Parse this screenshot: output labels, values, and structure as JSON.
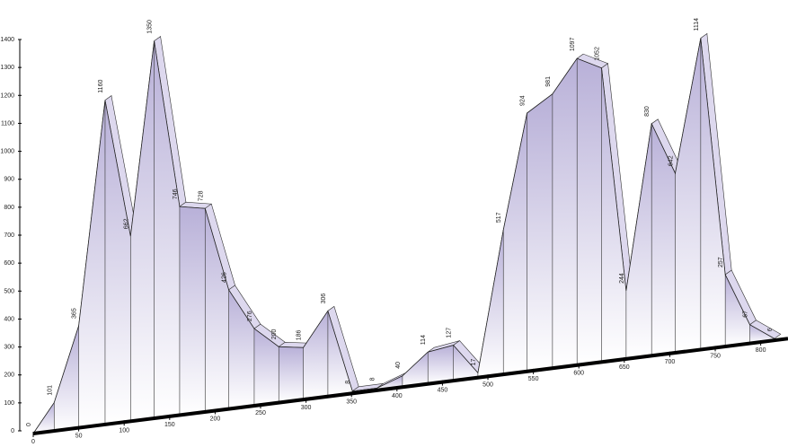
{
  "chart_data": {
    "type": "area3d",
    "x": [
      0,
      23,
      50,
      79,
      107,
      133,
      161,
      189,
      215,
      243,
      270,
      297,
      324,
      351,
      378,
      406,
      434,
      462,
      489,
      517,
      543,
      571,
      598,
      625,
      652,
      680,
      706,
      734,
      761,
      788,
      815
    ],
    "values": [
      0,
      101,
      365,
      1160,
      662,
      1350,
      746,
      728,
      426,
      276,
      200,
      186,
      306,
      8,
      8,
      40,
      114,
      127,
      17,
      517,
      924,
      981,
      1097,
      1052,
      244,
      830,
      642,
      1114,
      257,
      67,
      6
    ],
    "color": "#b8b0d8",
    "xlim": [
      0,
      830
    ],
    "xticks": [
      0,
      50,
      100,
      150,
      200,
      250,
      300,
      350,
      400,
      450,
      500,
      550,
      600,
      650,
      700,
      750,
      800
    ],
    "ylim": [
      0,
      1400
    ],
    "yticks": [
      0,
      100,
      200,
      300,
      400,
      500,
      600,
      700,
      800,
      900,
      1000,
      1100,
      1200,
      1300,
      1400
    ]
  }
}
